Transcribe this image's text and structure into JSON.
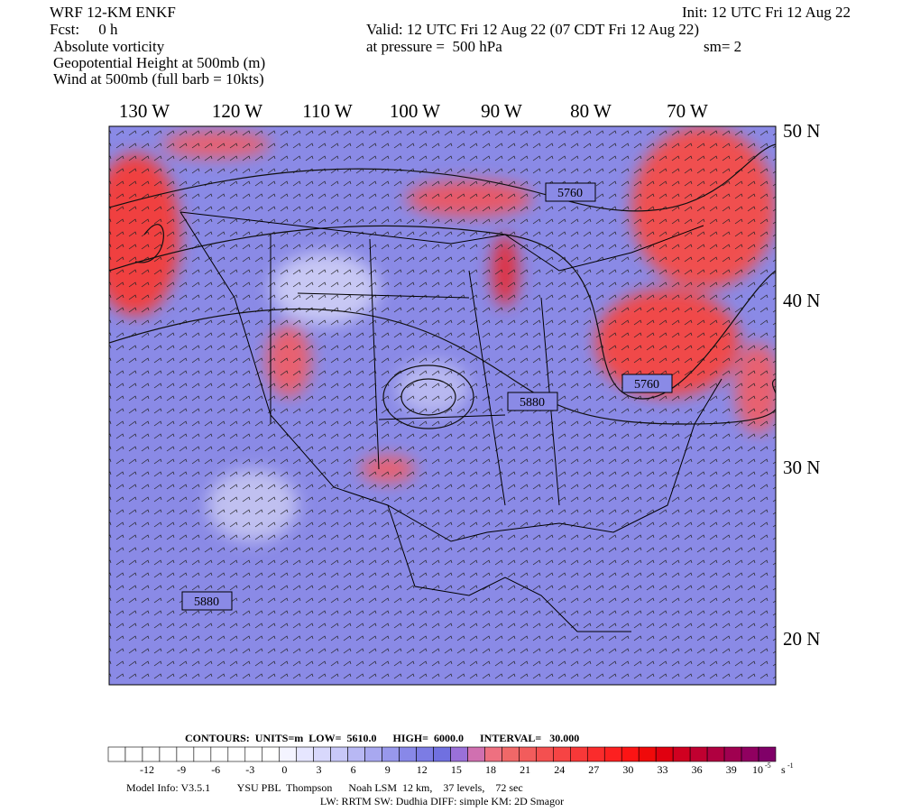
{
  "header": {
    "left": [
      "WRF 12-KM ENKF",
      "Fcst:     0 h",
      "Absolute vorticity",
      "Geopotential Height at 500mb (m)",
      "Wind at 500mb (full barb = 10kts)"
    ],
    "init": "Init: 12 UTC Fri 12 Aug 22",
    "valid": "Valid: 12 UTC Fri 12 Aug 22 (07 CDT Fri 12 Aug 22)",
    "pressure": "at pressure =  500 hPa",
    "sm": "sm= 2"
  },
  "map": {
    "lon_labels": [
      "130 W",
      "120 W",
      "110 W",
      "100 W",
      "90 W",
      "80 W",
      "70 W"
    ],
    "lat_labels": [
      "50 N",
      "40 N",
      "30 N",
      "20 N"
    ],
    "contour_labels": [
      "5760",
      "5760",
      "5880",
      "5880"
    ]
  },
  "colorbar": {
    "contours": "CONTOURS:  UNITS=m  LOW=  5610.0      HIGH=  6000.0      INTERVAL=   30.000",
    "labels": [
      "-12",
      "-9",
      "-6",
      "-3",
      "0",
      "3",
      "6",
      "9",
      "12",
      "15",
      "18",
      "21",
      "24",
      "27",
      "30",
      "33",
      "36",
      "39"
    ],
    "scale": "10",
    "scale_exponent": "-5",
    "unit": "s",
    "unit_exponent": "-1",
    "colors": [
      "#ffffff",
      "#ffffff",
      "#ffffff",
      "#ffffff",
      "#ffffff",
      "#ffffff",
      "#ffffff",
      "#ffffff",
      "#ffffff",
      "#ffffff",
      "#f4f4ff",
      "#e6e6ff",
      "#d8d8fc",
      "#c8c8f8",
      "#b8b8f4",
      "#a8a8f0",
      "#9898ec",
      "#8888e8",
      "#7c7ce4",
      "#7070e0",
      "#9a70d8",
      "#d070b0",
      "#ee7080",
      "#f06868",
      "#f25c5c",
      "#f45050",
      "#f64444",
      "#f83838",
      "#fa2c2c",
      "#fc2020",
      "#fc1414",
      "#f00a0a",
      "#e00010",
      "#d00020",
      "#c00030",
      "#b00040",
      "#a00050",
      "#900060",
      "#800068"
    ]
  },
  "footer": {
    "model_info": "Model Info: V3.5.1          YSU PBL  Thompson      Noah LSM  12 km,    37 levels,    72 sec",
    "physics": "LW: RRTM SW: Dudhia  DIFF: simple KM: 2D Smagor"
  }
}
